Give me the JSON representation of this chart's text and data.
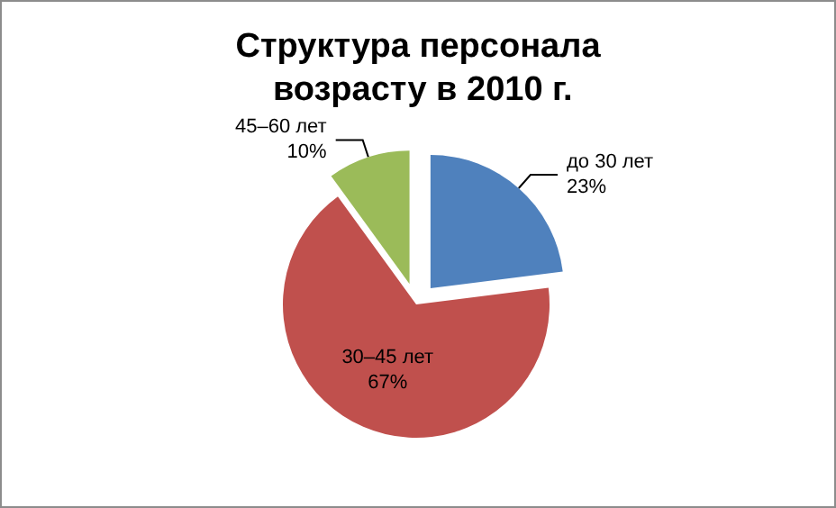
{
  "chart_data": {
    "type": "pie",
    "title": "Структура персонала возрасту в 2010 г.",
    "categories": [
      "до 30 лет",
      "30–45 лет",
      "45–60 лет"
    ],
    "values": [
      23,
      67,
      10
    ],
    "colors": [
      "#4f81bd",
      "#c0504d",
      "#9bbb59"
    ],
    "value_labels": [
      "23%",
      "67%",
      "10%"
    ]
  }
}
